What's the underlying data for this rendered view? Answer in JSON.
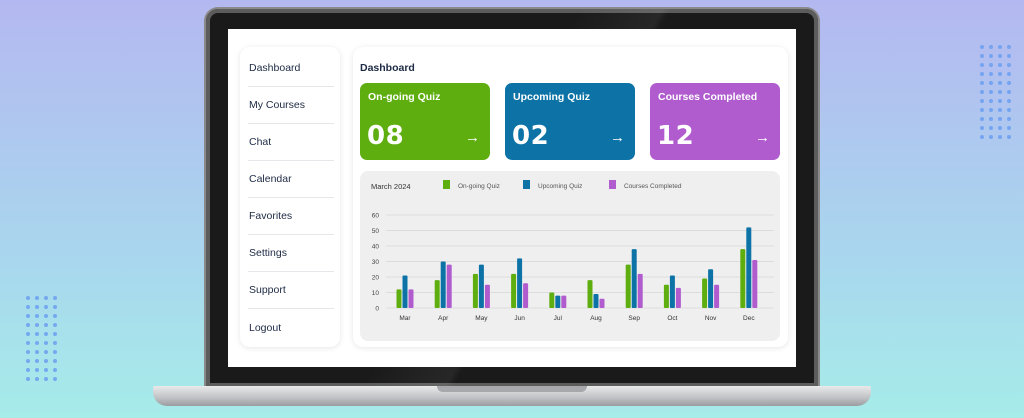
{
  "sidebar": {
    "items": [
      {
        "label": "Dashboard",
        "name": "sidebar-item-dashboard"
      },
      {
        "label": "My Courses",
        "name": "sidebar-item-my-courses"
      },
      {
        "label": "Chat",
        "name": "sidebar-item-chat"
      },
      {
        "label": "Calendar",
        "name": "sidebar-item-calendar"
      },
      {
        "label": "Favorites",
        "name": "sidebar-item-favorites"
      },
      {
        "label": "Settings",
        "name": "sidebar-item-settings"
      },
      {
        "label": "Support",
        "name": "sidebar-item-support"
      },
      {
        "label": "Logout",
        "name": "sidebar-item-logout"
      }
    ]
  },
  "main": {
    "title": "Dashboard",
    "cards": [
      {
        "label": "On-going Quiz",
        "value": "08",
        "color": "#5fae10",
        "arrow_icon": "arrow-right-icon"
      },
      {
        "label": "Upcoming Quiz",
        "value": "02",
        "color": "#0d73a6",
        "arrow_icon": "arrow-right-icon"
      },
      {
        "label": "Courses Completed",
        "value": "12",
        "color": "#b05ccf",
        "arrow_icon": "arrow-right-icon"
      }
    ]
  },
  "chart_data": {
    "type": "bar",
    "title": "March 2024",
    "categories": [
      "Mar",
      "Apr",
      "May",
      "Jun",
      "Jul",
      "Aug",
      "Sep",
      "Oct",
      "Nov",
      "Dec"
    ],
    "series": [
      {
        "name": "On-going Quiz",
        "color": "#5fae10",
        "values": [
          12,
          18,
          22,
          22,
          10,
          18,
          28,
          15,
          19,
          38
        ]
      },
      {
        "name": "Upcoming Quiz",
        "color": "#0d73a6",
        "values": [
          21,
          30,
          28,
          32,
          8,
          9,
          38,
          21,
          25,
          52
        ]
      },
      {
        "name": "Courses Completed",
        "color": "#b05ccf",
        "values": [
          12,
          28,
          15,
          16,
          8,
          6,
          22,
          13,
          15,
          31
        ]
      }
    ],
    "yticks": [
      0,
      10,
      20,
      30,
      40,
      50,
      60
    ],
    "ylim": [
      0,
      60
    ],
    "grid": true,
    "legend": "top"
  }
}
